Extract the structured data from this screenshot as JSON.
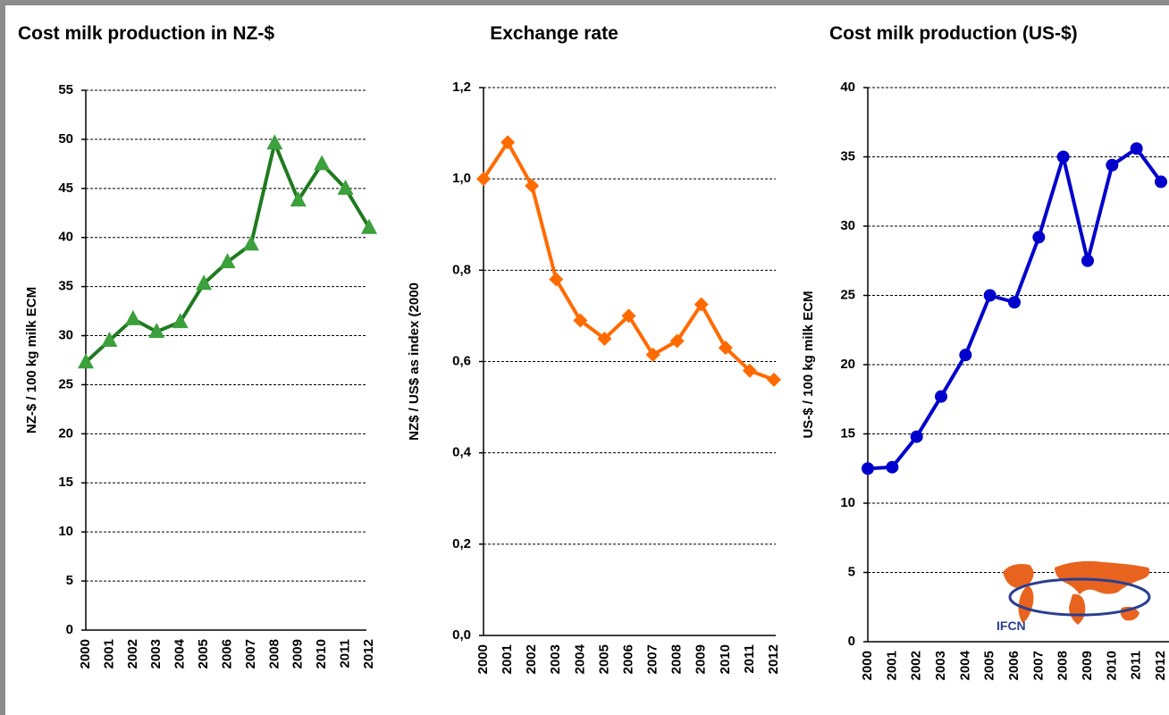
{
  "chart_data": [
    {
      "type": "line",
      "title": "Cost milk production in NZ-$",
      "y_label": "NZ-$ / 100 kg milk ECM",
      "categories": [
        "2000",
        "2001",
        "2002",
        "2003",
        "2004",
        "2005",
        "2006",
        "2007",
        "2008",
        "2009",
        "2010",
        "2011",
        "2012"
      ],
      "values": [
        27.3,
        29.5,
        31.7,
        30.4,
        31.4,
        35.3,
        37.5,
        39.3,
        49.6,
        43.8,
        47.5,
        45.0,
        41.0
      ],
      "color": "#1f7a1f",
      "marker": "triangle",
      "marker_color": "#3ca03c",
      "ylim": [
        0,
        55
      ],
      "yticks": [
        0,
        5,
        10,
        15,
        20,
        25,
        30,
        35,
        40,
        45,
        50,
        55
      ],
      "grid": true
    },
    {
      "type": "line",
      "title": "Exchange rate",
      "y_label": "NZ$ / US$ as index (2000",
      "categories": [
        "2000",
        "2001",
        "2002",
        "2003",
        "2004",
        "2005",
        "2006",
        "2007",
        "2008",
        "2009",
        "2010",
        "2011",
        "2012"
      ],
      "values": [
        1.0,
        1.08,
        0.985,
        0.78,
        0.69,
        0.65,
        0.7,
        0.615,
        0.645,
        0.725,
        0.63,
        0.58,
        0.56
      ],
      "color": "#ff6a00",
      "marker": "diamond",
      "marker_color": "#ff6a00",
      "ylim": [
        0,
        1.2
      ],
      "yticks": [
        {
          "value": 0,
          "label": "0,0"
        },
        {
          "value": 0.2,
          "label": "0,2"
        },
        {
          "value": 0.4,
          "label": "0,4"
        },
        {
          "value": 0.6,
          "label": "0,6"
        },
        {
          "value": 0.8,
          "label": "0,8"
        },
        {
          "value": 1.0,
          "label": "1,0"
        },
        {
          "value": 1.2,
          "label": "1,2"
        }
      ],
      "grid": true
    },
    {
      "type": "line",
      "title": "Cost milk production (US-$)",
      "y_label": "US-$ / 100 kg milk ECM",
      "categories": [
        "2000",
        "2001",
        "2002",
        "2003",
        "2004",
        "2005",
        "2006",
        "2007",
        "2008",
        "2009",
        "2010",
        "2011",
        "2012"
      ],
      "values": [
        12.5,
        12.6,
        14.8,
        17.7,
        20.7,
        25.0,
        24.5,
        29.2,
        35.0,
        27.5,
        34.4,
        35.6,
        33.2
      ],
      "color": "#0000cc",
      "marker": "circle",
      "marker_color": "#0000cc",
      "ylim": [
        0,
        40
      ],
      "yticks": [
        0,
        5,
        10,
        15,
        20,
        25,
        30,
        35,
        40
      ],
      "grid": true
    }
  ],
  "logo": "IFCN"
}
